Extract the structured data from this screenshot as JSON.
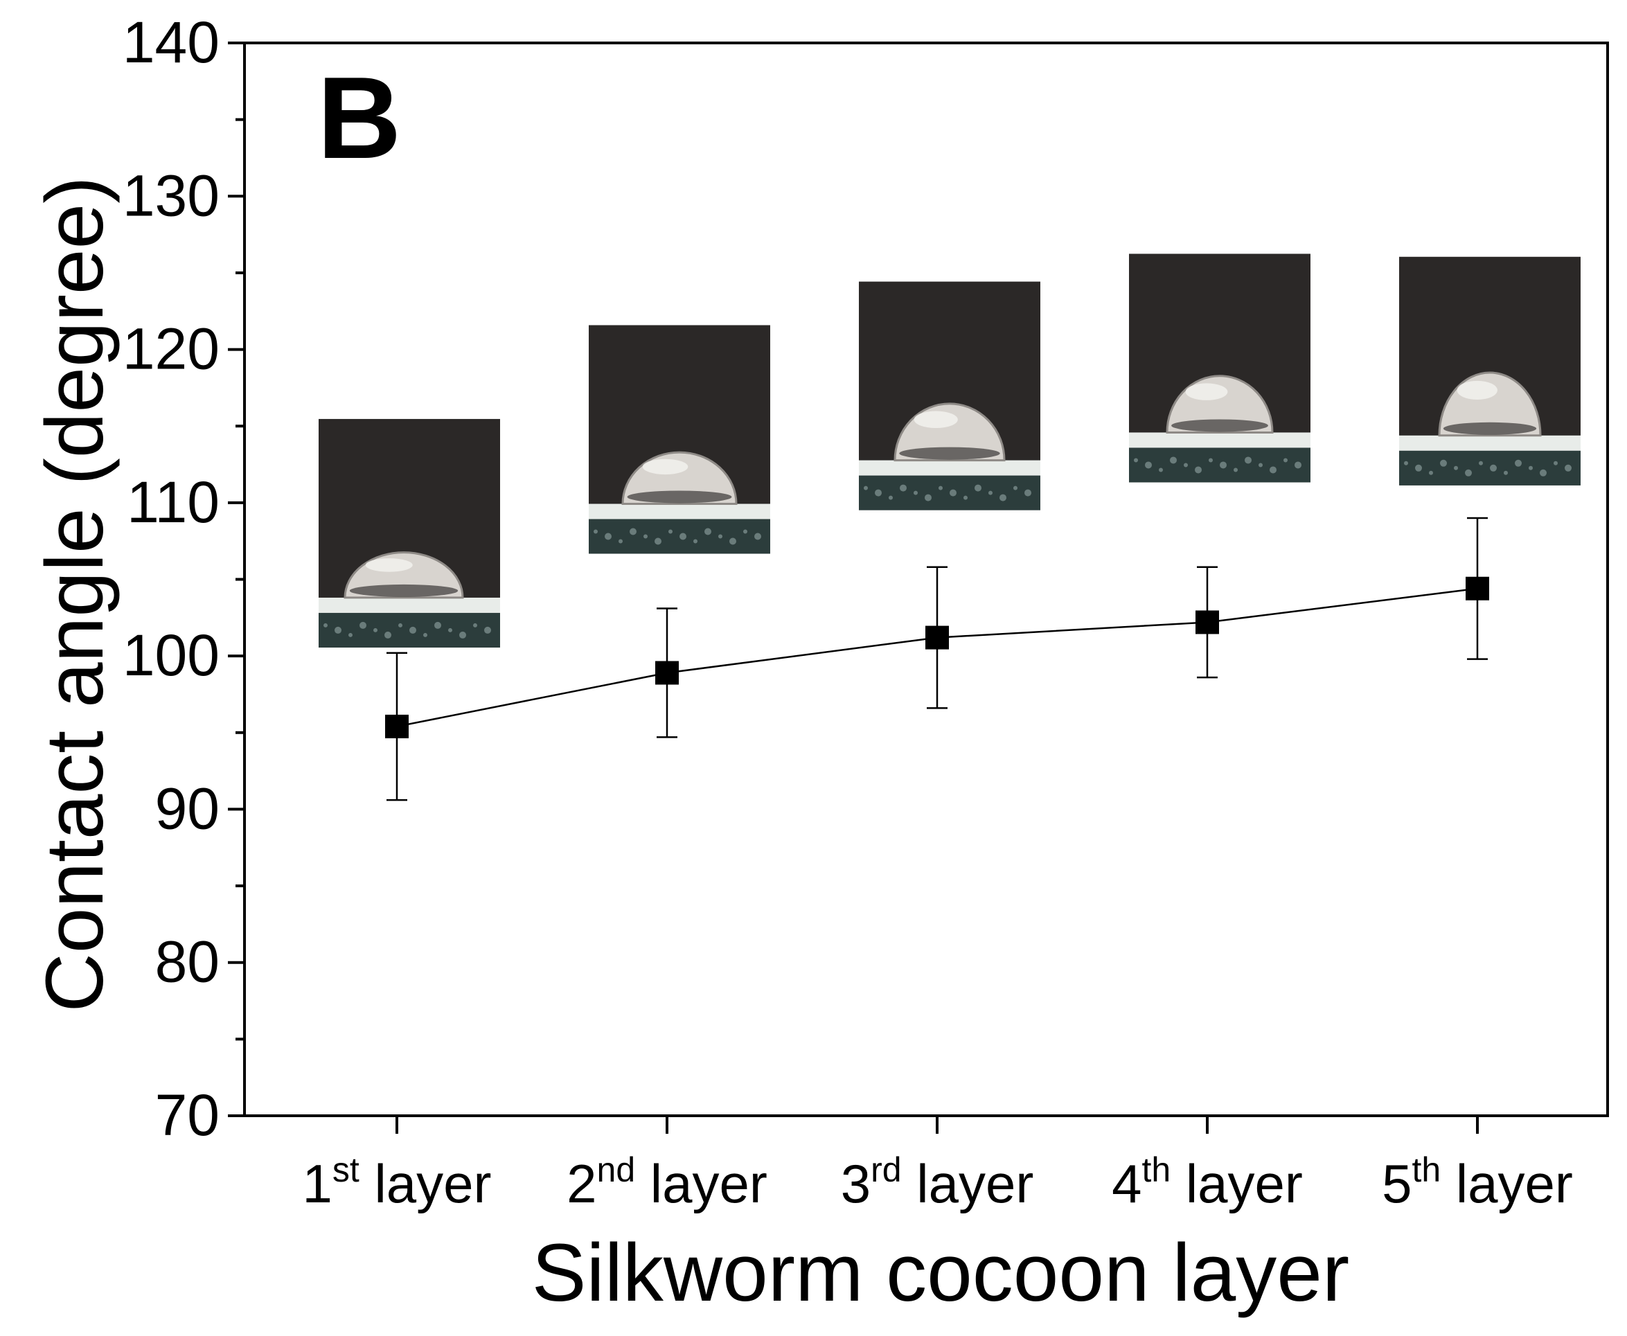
{
  "chart_data": {
    "type": "line",
    "panel_label": "B",
    "title": "",
    "xlabel": "Silkworm cocoon layer",
    "ylabel": "Contact angle (degree)",
    "ylim": [
      70,
      140
    ],
    "y_ticks": [
      70,
      80,
      90,
      100,
      110,
      120,
      130,
      140
    ],
    "grid": false,
    "legend": "none",
    "categories": [
      {
        "base": "1",
        "sup": "st",
        "rest": " layer"
      },
      {
        "base": "2",
        "sup": "nd",
        "rest": " layer"
      },
      {
        "base": "3",
        "sup": "rd",
        "rest": " layer"
      },
      {
        "base": "4",
        "sup": "th",
        "rest": " layer"
      },
      {
        "base": "5",
        "sup": "th",
        "rest": " layer"
      }
    ],
    "series": [
      {
        "values": [
          95.4,
          98.9,
          101.2,
          102.2,
          104.4
        ],
        "error": [
          4.8,
          4.2,
          4.6,
          3.6,
          4.6
        ],
        "marker": "square",
        "color": "#000000"
      }
    ],
    "inset_images": [
      {
        "category": "1st layer",
        "content": "water droplet photo",
        "dome_fraction": 0.36
      },
      {
        "category": "2nd layer",
        "content": "water droplet photo",
        "dome_fraction": 0.41
      },
      {
        "category": "3rd layer",
        "content": "water droplet photo",
        "dome_fraction": 0.45
      },
      {
        "category": "4th layer",
        "content": "water droplet photo",
        "dome_fraction": 0.45
      },
      {
        "category": "5th layer",
        "content": "water droplet photo",
        "dome_fraction": 0.5
      }
    ],
    "colors": {
      "photo_background": "#2b2827",
      "droplet": "#d8d4cf",
      "substrate": "#2c3d3c",
      "substrate_edge": "#e8ece9"
    }
  }
}
